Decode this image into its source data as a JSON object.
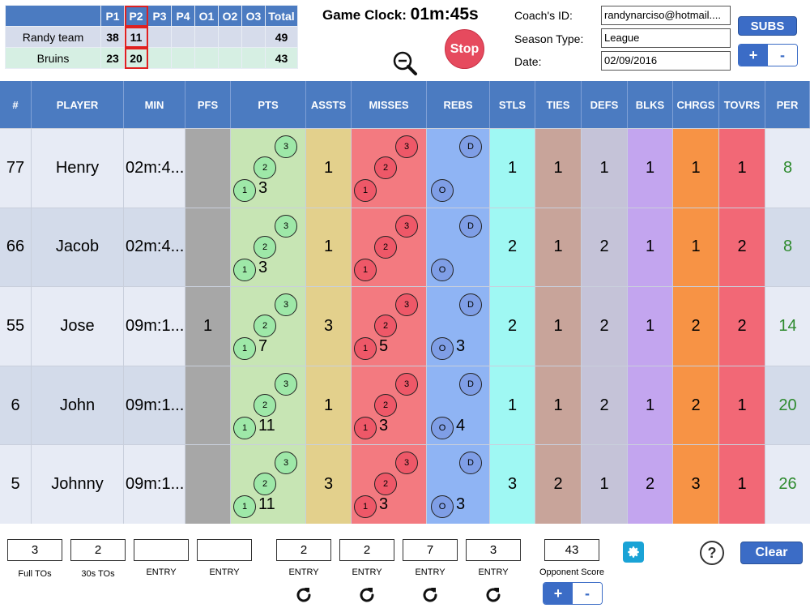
{
  "scoreboard": {
    "headers": [
      "P1",
      "P2",
      "P3",
      "P4",
      "O1",
      "O2",
      "O3",
      "Total"
    ],
    "teams": [
      {
        "name": "Randy team",
        "p1": "38",
        "p2": "11",
        "p3": "",
        "p4": "",
        "o1": "",
        "o2": "",
        "o3": "",
        "total": "49"
      },
      {
        "name": "Bruins",
        "p1": "23",
        "p2": "20",
        "p3": "",
        "p4": "",
        "o1": "",
        "o2": "",
        "o3": "",
        "total": "43"
      }
    ]
  },
  "clock": {
    "label": "Game Clock:",
    "value": "01m:45s"
  },
  "stop_label": "Stop",
  "info": {
    "coach_label": "Coach's ID:",
    "coach_value": "randynarciso@hotmail....",
    "season_label": "Season Type:",
    "season_value": "League",
    "date_label": "Date:",
    "date_value": "02/09/2016"
  },
  "subs_label": "SUBS",
  "plus": "+",
  "minus": "-",
  "columns": [
    "#",
    "PLAYER",
    "MIN",
    "PFS",
    "PTS",
    "ASSTS",
    "MISSES",
    "REBS",
    "STLS",
    "TIES",
    "DEFS",
    "BLKS",
    "CHRGS",
    "TOVRS",
    "PER"
  ],
  "circle_labels": {
    "three": "3",
    "two": "2",
    "one": "1",
    "def": "D",
    "off": "O"
  },
  "players": [
    {
      "num": "77",
      "name": "Henry",
      "min": "02m:4...",
      "pfs": "",
      "pts": "3",
      "assts": "1",
      "misses": "",
      "rebs": "",
      "stls": "1",
      "ties": "1",
      "defs": "1",
      "blks": "1",
      "chrgs": "1",
      "tovrs": "1",
      "per": "8"
    },
    {
      "num": "66",
      "name": "Jacob",
      "min": "02m:4...",
      "pfs": "",
      "pts": "3",
      "assts": "1",
      "misses": "",
      "rebs": "",
      "stls": "2",
      "ties": "1",
      "defs": "2",
      "blks": "1",
      "chrgs": "1",
      "tovrs": "2",
      "per": "8"
    },
    {
      "num": "55",
      "name": "Jose",
      "min": "09m:1...",
      "pfs": "1",
      "pts": "7",
      "assts": "3",
      "misses": "5",
      "rebs": "3",
      "stls": "2",
      "ties": "1",
      "defs": "2",
      "blks": "1",
      "chrgs": "2",
      "tovrs": "2",
      "per": "14"
    },
    {
      "num": "6",
      "name": "John",
      "min": "09m:1...",
      "pfs": "",
      "pts": "11",
      "assts": "1",
      "misses": "3",
      "rebs": "4",
      "stls": "1",
      "ties": "1",
      "defs": "2",
      "blks": "1",
      "chrgs": "2",
      "tovrs": "1",
      "per": "20"
    },
    {
      "num": "5",
      "name": "Johnny",
      "min": "09m:1...",
      "pfs": "",
      "pts": "11",
      "assts": "3",
      "misses": "3",
      "rebs": "3",
      "stls": "3",
      "ties": "2",
      "defs": "1",
      "blks": "2",
      "chrgs": "3",
      "tovrs": "1",
      "per": "26"
    }
  ],
  "bottom": {
    "fields": [
      {
        "value": "3",
        "label": "Full TOs"
      },
      {
        "value": "2",
        "label": "30s TOs"
      },
      {
        "value": "",
        "label": "ENTRY"
      },
      {
        "value": "",
        "label": "ENTRY"
      },
      {
        "value": "2",
        "label": "ENTRY"
      },
      {
        "value": "2",
        "label": "ENTRY"
      },
      {
        "value": "7",
        "label": "ENTRY"
      },
      {
        "value": "3",
        "label": "ENTRY"
      },
      {
        "value": "43",
        "label": "Opponent Score"
      }
    ],
    "clear_label": "Clear",
    "help_label": "?"
  },
  "colors": {
    "accent": "#3b6cc6",
    "header": "#4b7bc1",
    "stop": "#e64a5e",
    "per_text": "#2d8a2d"
  }
}
